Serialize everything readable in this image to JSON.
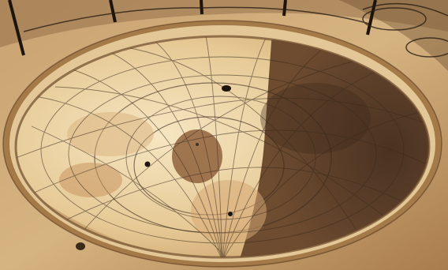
{
  "photo": {
    "subject": "hemispherical-sundial-bowl",
    "colors": {
      "stone_light": "#d9bd8c",
      "stone_mid": "#b88f5c",
      "stone_dark": "#5a3a22",
      "bowl_lit": "#f0dcb0",
      "bowl_shadow": "#6b4a30",
      "line": "#3a2a1c"
    }
  }
}
